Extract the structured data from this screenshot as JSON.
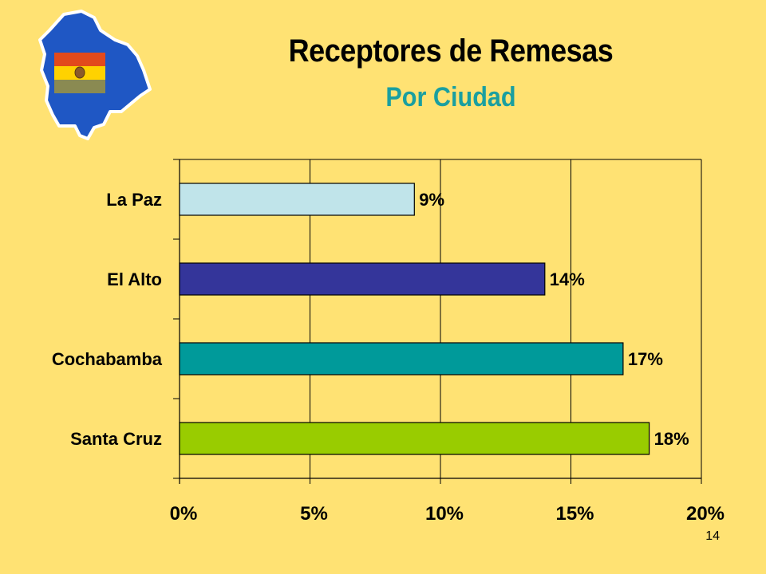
{
  "slide": {
    "title": "Receptores de Remesas",
    "subtitle": "Por Ciudad",
    "page_number": "14",
    "background": "#ffe273",
    "title_color": "#000000",
    "subtitle_color": "#1a9fa0"
  },
  "logo": {
    "icon": "bolivia-map-with-flag-icon",
    "map_color": "#1f57c4",
    "flag_colors": [
      "#e24a1c",
      "#ffd200",
      "#8a8a52"
    ]
  },
  "chart_data": {
    "type": "bar",
    "orientation": "horizontal",
    "categories": [
      "La Paz",
      "El Alto",
      "Cochabamba",
      "Santa Cruz"
    ],
    "values": [
      9,
      14,
      17,
      18
    ],
    "value_labels": [
      "9%",
      "14%",
      "17%",
      "18%"
    ],
    "bar_colors": [
      "#c0e4ea",
      "#34359a",
      "#009a9a",
      "#99cc00"
    ],
    "xlim": [
      0,
      20
    ],
    "xticks": [
      0,
      5,
      10,
      15,
      20
    ],
    "xtick_labels": [
      "0%",
      "5%",
      "10%",
      "15%",
      "20%"
    ],
    "grid": true,
    "legend": "none",
    "xlabel": "",
    "ylabel": ""
  }
}
